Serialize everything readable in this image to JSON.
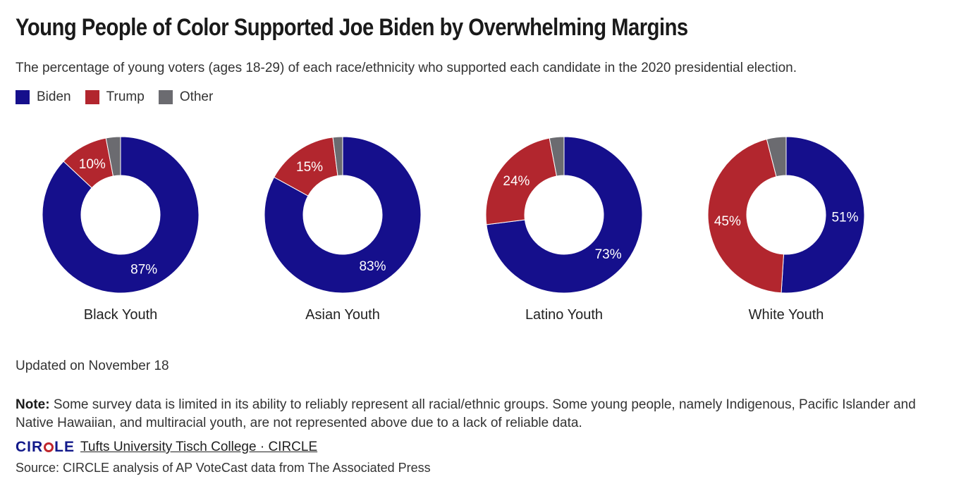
{
  "title": "Young People of Color Supported Joe Biden by Overwhelming Margins",
  "subtitle": "The percentage of young voters (ages 18-29) of each race/ethnicity who supported each candidate in the 2020 presidential election.",
  "legend": [
    {
      "label": "Biden",
      "color": "#150f8c"
    },
    {
      "label": "Trump",
      "color": "#b2262e"
    },
    {
      "label": "Other",
      "color": "#6b6b70"
    }
  ],
  "chart_data": {
    "type": "pie",
    "variant": "donut",
    "series_names": [
      "Biden",
      "Trump",
      "Other"
    ],
    "charts": [
      {
        "label": "Black Youth",
        "values": [
          87,
          10,
          3
        ],
        "labels": [
          "87%",
          "10%",
          ""
        ]
      },
      {
        "label": "Asian Youth",
        "values": [
          83,
          15,
          2
        ],
        "labels": [
          "83%",
          "15%",
          ""
        ]
      },
      {
        "label": "Latino Youth",
        "values": [
          73,
          24,
          3
        ],
        "labels": [
          "73%",
          "24%",
          ""
        ]
      },
      {
        "label": "White Youth",
        "values": [
          51,
          45,
          4
        ],
        "labels": [
          "51%",
          "45%",
          ""
        ]
      }
    ]
  },
  "updated": "Updated on November 18",
  "note": {
    "bold": "Note:",
    "text": " Some survey data is limited in its ability to reliably represent all racial/ethnic groups. Some young people, namely Indigenous, Pacific Islander and Native Hawaiian, and multiracial youth, are not represented above due to a lack of reliable data."
  },
  "credit": {
    "logo_left": "CIR",
    "logo_right": "LE",
    "link": "Tufts University Tisch College · CIRCLE"
  },
  "source": "Source: CIRCLE analysis of AP VoteCast data from The Associated Press"
}
